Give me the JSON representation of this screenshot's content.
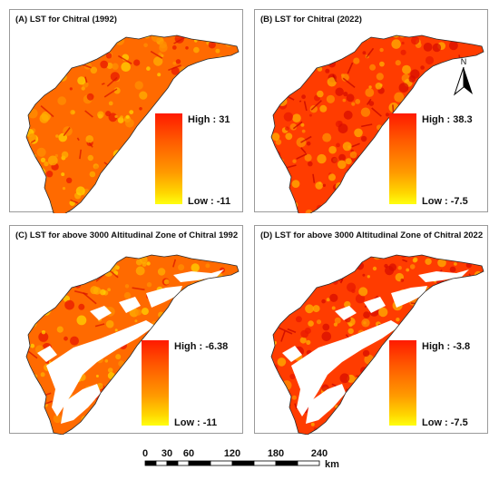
{
  "panels": [
    {
      "id": "A",
      "title": "(A) LST  for Chitral (1992)",
      "legend_high": "High : 31",
      "legend_low": "Low : -11",
      "zone": false,
      "tone": "mid"
    },
    {
      "id": "B",
      "title": "(B) LST  for Chitral (2022)",
      "legend_high": "High : 38.3",
      "legend_low": "Low : -7.5",
      "zone": false,
      "tone": "hot"
    },
    {
      "id": "C",
      "title": "(C) LST for above 3000 Altitudinal Zone of Chitral 1992",
      "legend_high": "High : -6.38",
      "legend_low": "Low : -11",
      "zone": true,
      "tone": "mid"
    },
    {
      "id": "D",
      "title": "(D) LST for above 3000 Altitudinal Zone of Chitral 2022",
      "legend_high": "High : -3.8",
      "legend_low": "Low : -7.5",
      "zone": true,
      "tone": "hot"
    }
  ],
  "north_arrow": {
    "label": "N"
  },
  "scale_bar": {
    "ticks": [
      "0",
      "30",
      "60",
      "120",
      "180",
      "240"
    ],
    "unit": "km"
  },
  "colors": {
    "high": "#ff1a00",
    "mid": "#ff8c00",
    "low": "#ffff10",
    "border": "#9a9a9a"
  }
}
